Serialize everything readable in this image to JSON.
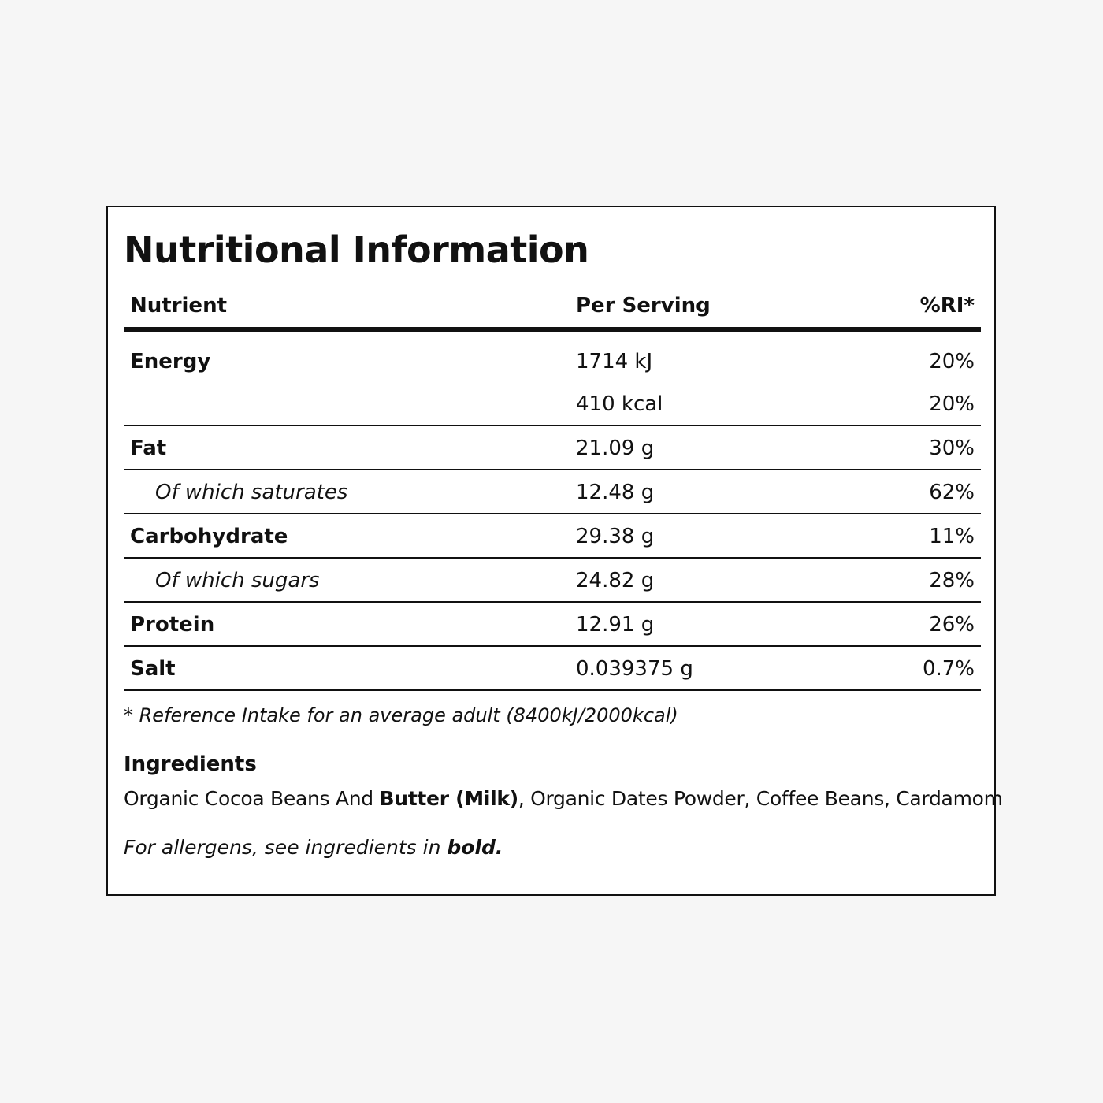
{
  "title": "Nutritional Information",
  "table": {
    "headers": {
      "nutrient": "Nutrient",
      "per_serving": "Per Serving",
      "ri": "%RI*"
    },
    "energy": {
      "name": "Energy",
      "kj": "1714 kJ",
      "kj_ri": "20%",
      "kcal": "410 kcal",
      "kcal_ri": "20%"
    },
    "rows": [
      {
        "name": "Fat",
        "value": "21.09 g",
        "ri": "30%"
      },
      {
        "name": "Of which saturates",
        "value": "12.48 g",
        "ri": "62%"
      },
      {
        "name": "Carbohydrate",
        "value": "29.38 g",
        "ri": "11%"
      },
      {
        "name": "Of which sugars",
        "value": "24.82 g",
        "ri": "28%"
      },
      {
        "name": "Protein",
        "value": "12.91 g",
        "ri": "26%"
      },
      {
        "name": "Salt",
        "value": "0.039375 g",
        "ri": "0.7%"
      }
    ]
  },
  "footnote": "* Reference Intake for an average adult (8400kJ/2000kcal)",
  "ingredients": {
    "heading": "Ingredients",
    "text_before": "Organic Cocoa Beans And ",
    "allergen": "Butter (Milk)",
    "text_after": ", Organic Dates Powder, Coffee Beans, Cardamom"
  },
  "allergen_note": {
    "text": "For allergens, see ingredients in ",
    "emphasis": "bold."
  }
}
